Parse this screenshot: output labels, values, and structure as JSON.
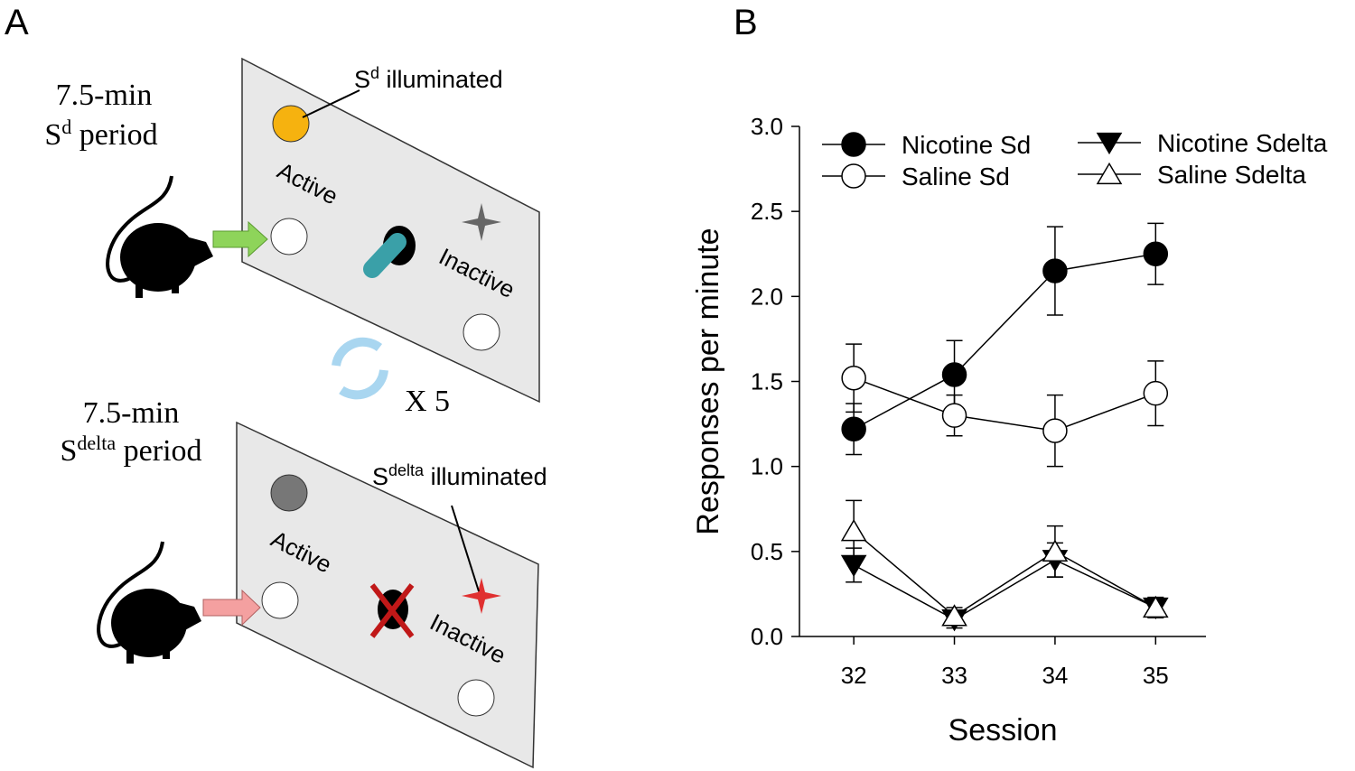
{
  "panel_labels": [
    "A",
    "B"
  ],
  "diagram": {
    "sd_period": {
      "duration": "7.5-min",
      "base": "S",
      "sup": "d",
      "rest": " period"
    },
    "sd_illuminated": {
      "base": "S",
      "sup": "d",
      "rest": " illuminated"
    },
    "sdelta_period": {
      "duration": "7.5-min",
      "base": "S",
      "sup": "delta",
      "rest": " period"
    },
    "sdelta_illuminated": {
      "base": "S",
      "sup": "delta",
      "rest": " illuminated"
    },
    "active": "Active",
    "inactive": "Inactive",
    "repeat": "X 5"
  },
  "chart_data": {
    "type": "line",
    "x_label": "Session",
    "y_label": "Responses per minute",
    "x": [
      32,
      33,
      34,
      35
    ],
    "xlim": [
      31.46,
      35.5
    ],
    "xticks": [
      32,
      33,
      34,
      35
    ],
    "ylim": [
      0,
      3
    ],
    "yticks": [
      {
        "value": 0,
        "label": "0.0"
      },
      {
        "value": 0.5,
        "label": "0.5"
      },
      {
        "value": 1,
        "label": "1.0"
      },
      {
        "value": 1.5,
        "label": "1.5"
      },
      {
        "value": 2,
        "label": "2.0"
      },
      {
        "value": 2.5,
        "label": "2.5"
      },
      {
        "value": 3,
        "label": "3.0"
      }
    ],
    "series": [
      {
        "name": "Nicotine Sd",
        "color": "#000000",
        "marker": "circle",
        "fill": "#000000",
        "values": [
          1.22,
          1.54,
          2.15,
          2.25
        ],
        "errors": [
          0.15,
          0.2,
          0.26,
          0.18
        ]
      },
      {
        "name": "Saline Sd",
        "color": "#000000",
        "marker": "circle",
        "fill": "#ffffff",
        "values": [
          1.52,
          1.3,
          1.21,
          1.43
        ],
        "errors": [
          0.2,
          0.12,
          0.21,
          0.19
        ]
      },
      {
        "name": "Nicotine Sdelta",
        "color": "#000000",
        "marker": "triangle-down",
        "fill": "#000000",
        "values": [
          0.42,
          0.1,
          0.45,
          0.17
        ],
        "errors": [
          0.1,
          0.05,
          0.1,
          0.05
        ]
      },
      {
        "name": "Saline Sdelta",
        "color": "#000000",
        "marker": "triangle-up",
        "fill": "#ffffff",
        "values": [
          0.62,
          0.12,
          0.5,
          0.17
        ],
        "errors": [
          0.18,
          0.05,
          0.15,
          0.06
        ]
      }
    ]
  }
}
